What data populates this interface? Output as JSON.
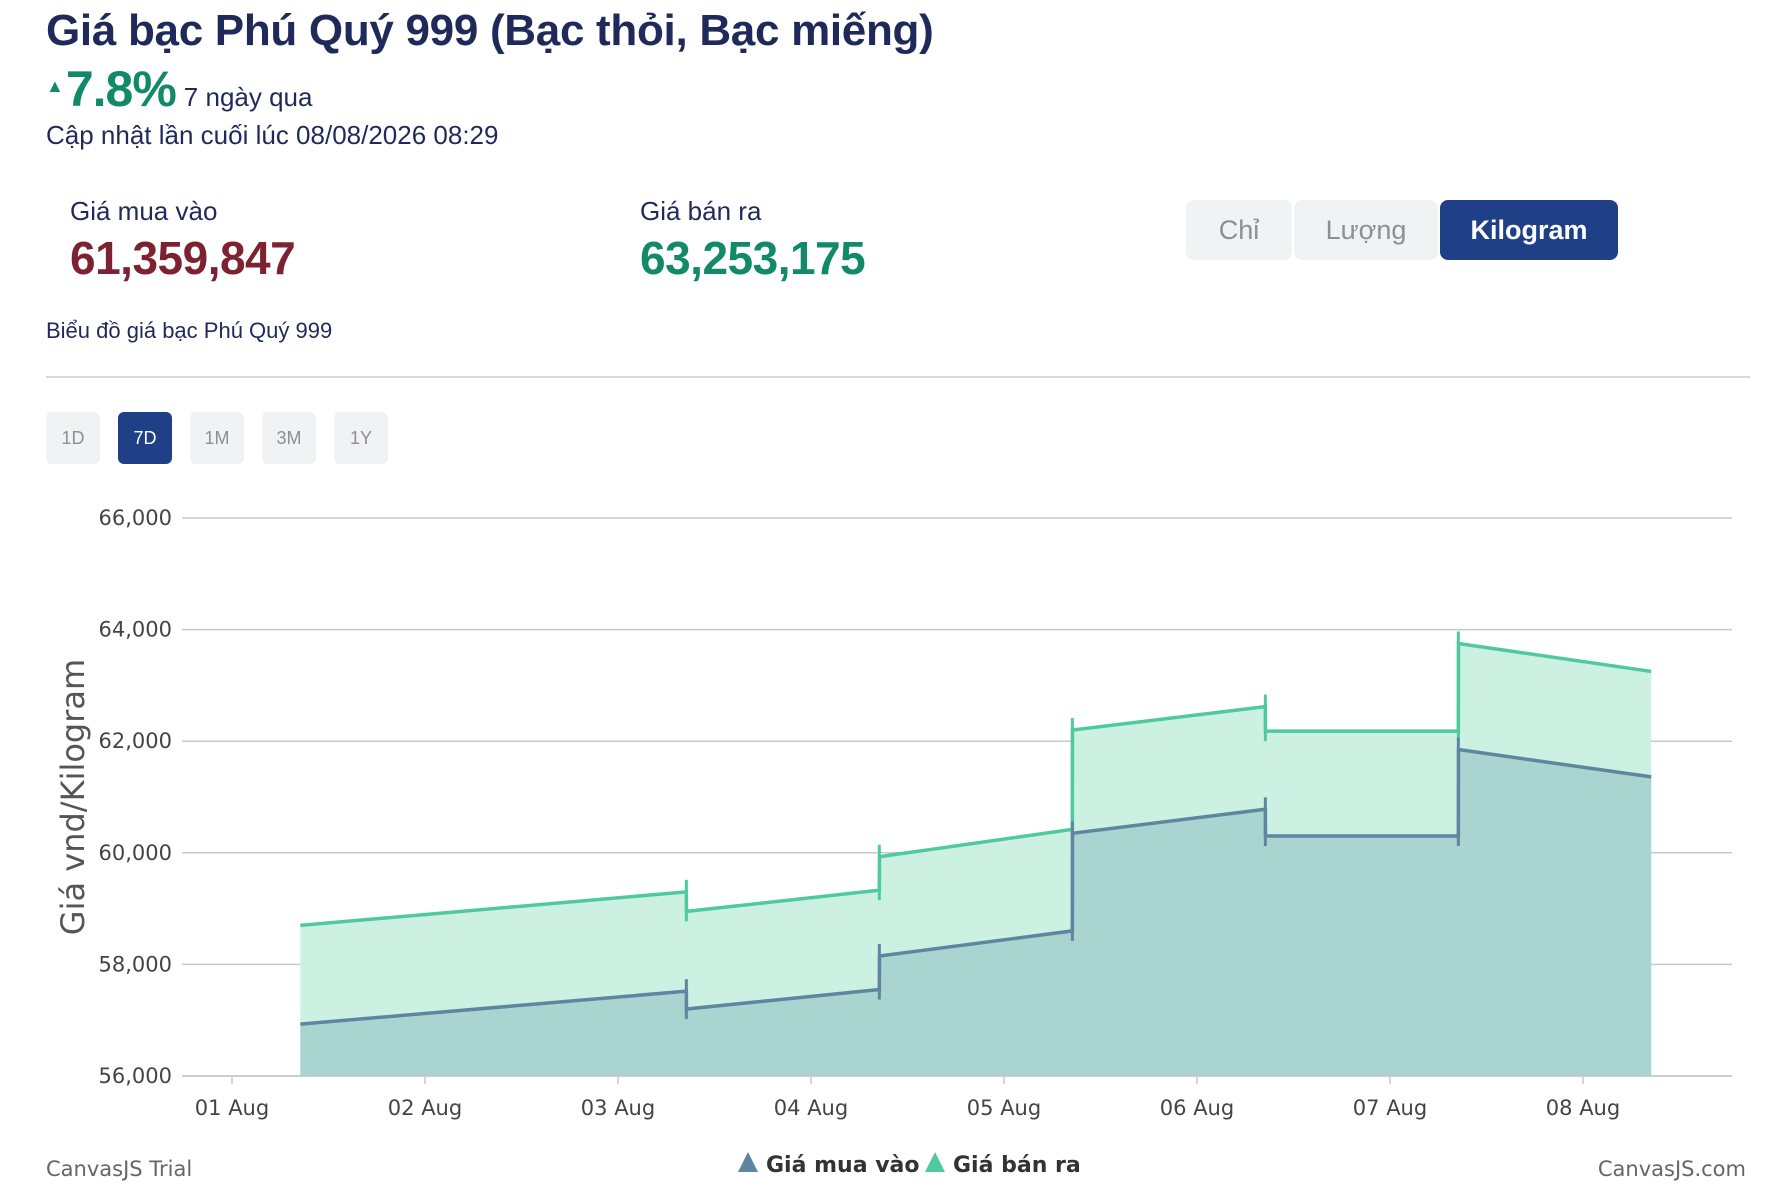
{
  "header": {
    "title": "Giá bạc Phú Quý 999 (Bạc thỏi, Bạc miếng)",
    "change_percent": "7.8%",
    "change_period": "7 ngày qua",
    "updated": "Cập nhật lần cuối lúc 08/08/2026 08:29"
  },
  "prices": {
    "buy_label": "Giá mua vào",
    "buy_value": "61,359,847",
    "sell_label": "Giá bán ra",
    "sell_value": "63,253,175"
  },
  "unit_tabs": [
    {
      "label": "Chỉ",
      "active": false
    },
    {
      "label": "Lượng",
      "active": false
    },
    {
      "label": "Kilogram",
      "active": true
    }
  ],
  "chart_subtitle": "Biểu đồ giá bạc Phú Quý 999",
  "range_tabs": [
    {
      "label": "1D",
      "active": false
    },
    {
      "label": "7D",
      "active": true
    },
    {
      "label": "1M",
      "active": false
    },
    {
      "label": "3M",
      "active": false
    },
    {
      "label": "1Y",
      "active": false
    }
  ],
  "colors": {
    "buy_line": "#5f86a0",
    "buy_fill": "#a9d4cf",
    "sell_line": "#4fca9c",
    "sell_fill": "#ccf1e2",
    "accent": "#1f3f87"
  },
  "chart_data": {
    "type": "area",
    "ylabel": "Giá vnd/Kilogram",
    "ylim": [
      56000,
      66000
    ],
    "yticks": [
      "56,000",
      "58,000",
      "60,000",
      "62,000",
      "64,000",
      "66,000"
    ],
    "xticks": [
      "01 Aug",
      "02 Aug",
      "03 Aug",
      "04 Aug",
      "05 Aug",
      "06 Aug",
      "07 Aug",
      "08 Aug"
    ],
    "grid": true,
    "legend_position": "bottom",
    "series": [
      {
        "name": "Giá mua vào",
        "points": [
          [
            "2026-08-01 08:30",
            56930
          ],
          [
            "2026-08-03 08:30",
            57520
          ],
          [
            "2026-08-03 08:31",
            57200
          ],
          [
            "2026-08-04 08:30",
            57550
          ],
          [
            "2026-08-04 08:31",
            58150
          ],
          [
            "2026-08-05 08:30",
            58600
          ],
          [
            "2026-08-05 08:31",
            60350
          ],
          [
            "2026-08-06 08:30",
            60780
          ],
          [
            "2026-08-06 08:31",
            60300
          ],
          [
            "2026-08-07 08:30",
            60300
          ],
          [
            "2026-08-07 08:31",
            61850
          ],
          [
            "2026-08-08 08:29",
            61360
          ]
        ]
      },
      {
        "name": "Giá bán ra",
        "points": [
          [
            "2026-08-01 08:30",
            58700
          ],
          [
            "2026-08-03 08:30",
            59300
          ],
          [
            "2026-08-03 08:31",
            58950
          ],
          [
            "2026-08-04 08:30",
            59330
          ],
          [
            "2026-08-04 08:31",
            59930
          ],
          [
            "2026-08-05 08:30",
            60420
          ],
          [
            "2026-08-05 08:31",
            62200
          ],
          [
            "2026-08-06 08:30",
            62620
          ],
          [
            "2026-08-06 08:31",
            62180
          ],
          [
            "2026-08-07 08:30",
            62180
          ],
          [
            "2026-08-07 08:31",
            63750
          ],
          [
            "2026-08-08 08:29",
            63250
          ]
        ]
      }
    ]
  },
  "credits": {
    "left": "CanvasJS Trial",
    "right": "CanvasJS.com"
  }
}
